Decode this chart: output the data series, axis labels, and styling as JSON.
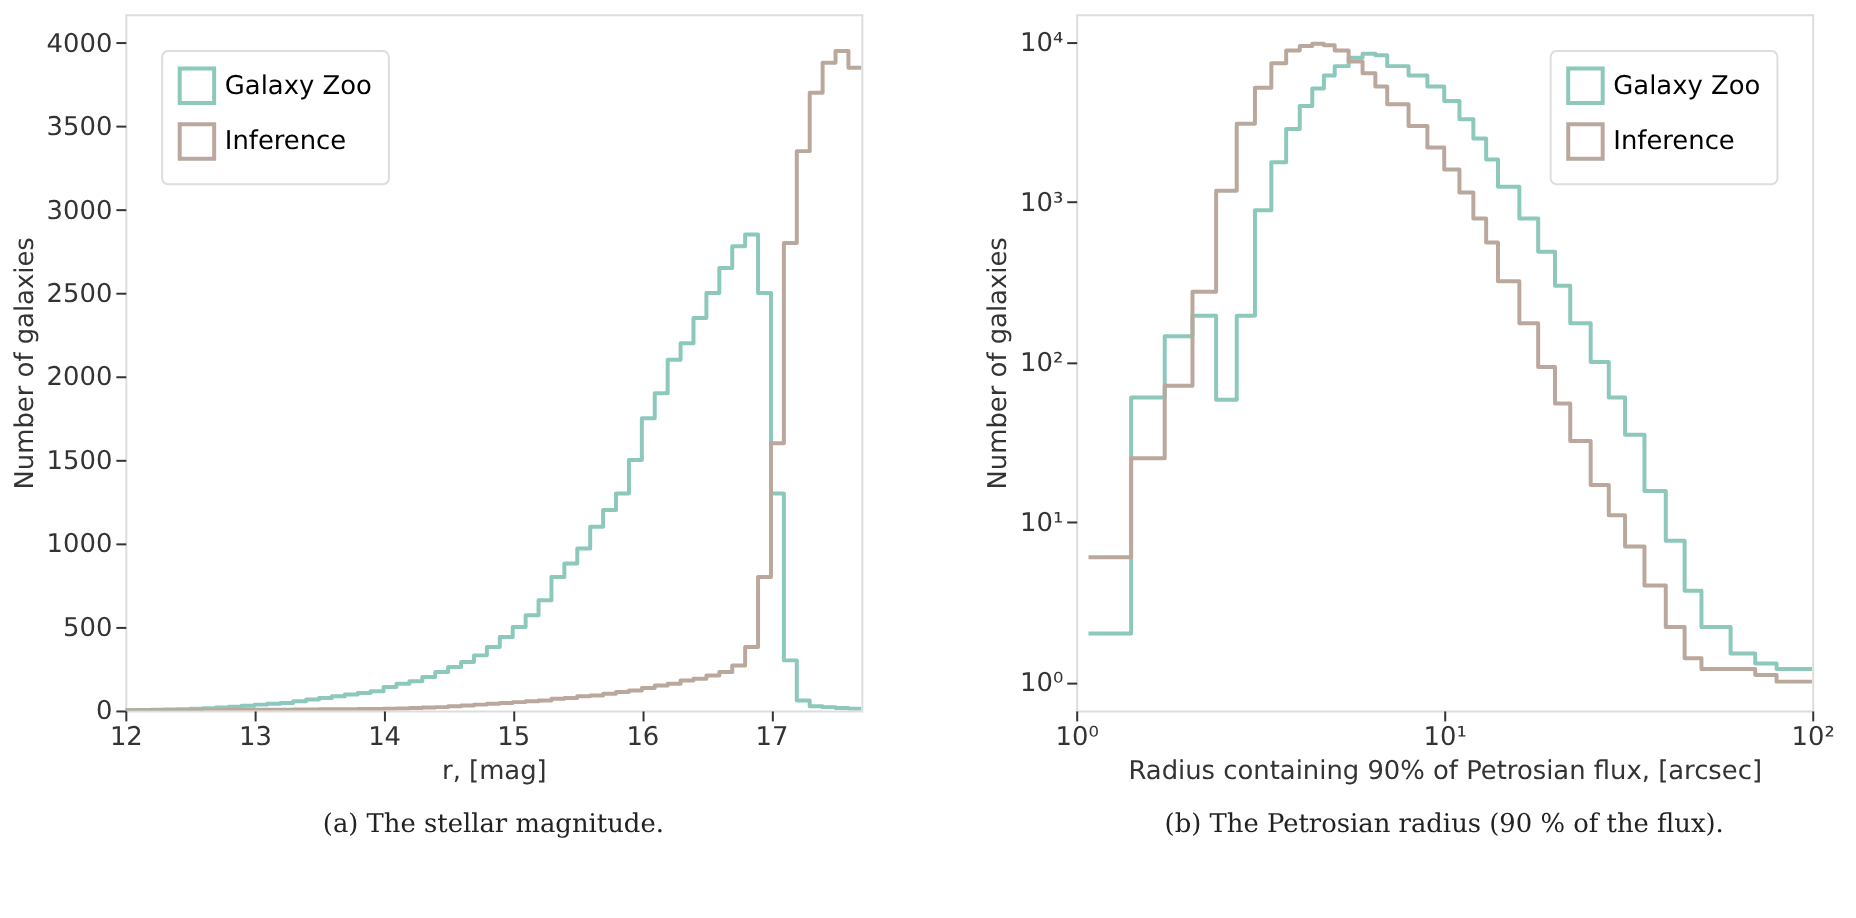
{
  "chart_data": [
    {
      "type": "histogram",
      "xlabel": "r, [mag]",
      "ylabel": "Number of galaxies",
      "annotations": [
        "(a) The stellar magnitude."
      ],
      "legend": "top left",
      "grid": false,
      "bins": [
        12.0,
        12.1,
        12.2,
        12.3,
        12.4,
        12.5,
        12.6,
        12.7,
        12.8,
        12.9,
        13.0,
        13.1,
        13.2,
        13.3,
        13.4,
        13.5,
        13.6,
        13.7,
        13.8,
        13.9,
        14.0,
        14.1,
        14.2,
        14.3,
        14.4,
        14.5,
        14.6,
        14.7,
        14.8,
        14.9,
        15.0,
        15.1,
        15.2,
        15.3,
        15.4,
        15.5,
        15.6,
        15.7,
        15.8,
        15.9,
        16.0,
        16.1,
        16.2,
        16.3,
        16.4,
        16.5,
        16.6,
        16.7,
        16.8,
        16.9,
        17.0,
        17.1,
        17.2,
        17.3,
        17.4,
        17.5,
        17.6,
        17.7
      ],
      "xlim": [
        12,
        17.7
      ],
      "xticks": [
        12,
        13,
        14,
        15,
        16,
        17
      ],
      "ylim": [
        0,
        4170
      ],
      "yticks": [
        0,
        500,
        1000,
        1500,
        2000,
        2500,
        3000,
        3500,
        4000
      ],
      "series": [
        {
          "name": "Galaxy Zoo",
          "color": "#8cc8bc",
          "values": [
            2,
            3,
            5,
            6,
            8,
            10,
            14,
            18,
            22,
            28,
            35,
            40,
            45,
            55,
            65,
            75,
            85,
            95,
            105,
            115,
            140,
            160,
            175,
            200,
            230,
            260,
            290,
            330,
            380,
            440,
            500,
            570,
            660,
            800,
            880,
            970,
            1100,
            1200,
            1300,
            1500,
            1750,
            1900,
            2100,
            2200,
            2350,
            2500,
            2650,
            2780,
            2850,
            2500,
            1300,
            300,
            60,
            25,
            20,
            15,
            10
          ]
        },
        {
          "name": "Inference",
          "color": "#bba89c",
          "values": [
            1,
            1,
            1,
            1,
            2,
            2,
            2,
            3,
            3,
            4,
            4,
            5,
            5,
            6,
            6,
            7,
            8,
            8,
            9,
            9,
            10,
            12,
            15,
            18,
            20,
            25,
            30,
            35,
            40,
            45,
            50,
            55,
            60,
            70,
            75,
            85,
            90,
            100,
            110,
            120,
            135,
            150,
            160,
            180,
            190,
            210,
            230,
            270,
            380,
            800,
            1600,
            2800,
            3350,
            3700,
            3880,
            3950,
            3850
          ]
        }
      ]
    },
    {
      "type": "histogram",
      "xlabel": "Radius containing 90% of Petrosian flux, [arcsec]",
      "ylabel": "Number of galaxies",
      "annotations": [
        "(b) The Petrosian radius (90 % of the flux)."
      ],
      "legend": "top right",
      "grid": false,
      "log": "xy",
      "bins": [
        1.08,
        1.41,
        1.74,
        2.07,
        2.4,
        2.73,
        3.06,
        3.39,
        3.72,
        4.05,
        4.38,
        4.71,
        5.04,
        5.5,
        6,
        6.5,
        7,
        8,
        9,
        10,
        11,
        12,
        13,
        14,
        16,
        18,
        20,
        22,
        25,
        28,
        31,
        35,
        40,
        45,
        50,
        60,
        70,
        80,
        100
      ],
      "xlim": [
        1,
        100
      ],
      "xticks": [
        {
          "value": 1,
          "label": "10⁰"
        },
        {
          "value": 10,
          "label": "10¹"
        },
        {
          "value": 100,
          "label": "10²"
        }
      ],
      "ylim": [
        0.66,
        15000
      ],
      "yticks": [
        {
          "value": 1,
          "label": "10⁰"
        },
        {
          "value": 10,
          "label": "10¹"
        },
        {
          "value": 100,
          "label": "10²"
        },
        {
          "value": 1000,
          "label": "10³"
        },
        {
          "value": 10000,
          "label": "10⁴"
        }
      ],
      "series": [
        {
          "name": "Galaxy Zoo",
          "color": "#8cc8bc",
          "values": [
            2,
            60,
            145,
            195,
            58,
            195,
            890,
            1780,
            2870,
            4000,
            5150,
            6200,
            7100,
            8000,
            8500,
            8300,
            7100,
            6200,
            5300,
            4300,
            3300,
            2500,
            1850,
            1250,
            790,
            490,
            300,
            175,
            100,
            60,
            35,
            15.6,
            7.6,
            3.7,
            2.2,
            1.5,
            1.3,
            1.2
          ]
        },
        {
          "name": "Inference",
          "color": "#bba89c",
          "values": [
            6,
            25,
            71,
            275,
            1180,
            3100,
            5200,
            7400,
            8900,
            9500,
            9800,
            9600,
            8900,
            7600,
            6400,
            5300,
            4100,
            3000,
            2200,
            1600,
            1150,
            790,
            560,
            320,
            175,
            93,
            55,
            32,
            17,
            11,
            7,
            4,
            2.2,
            1.4,
            1.2,
            1.2,
            1.1,
            1
          ]
        }
      ]
    }
  ]
}
